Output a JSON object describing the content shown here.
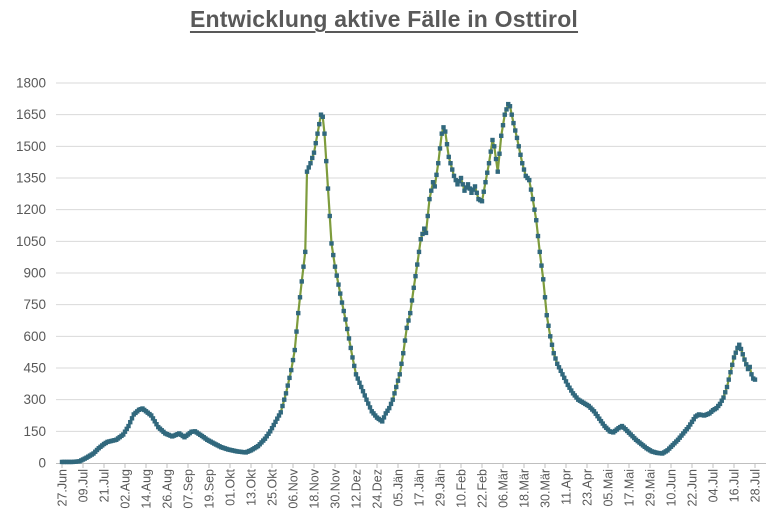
{
  "title": "Entwicklung aktive Fälle in Osttirol",
  "colors": {
    "line": "#7E9C3D",
    "marker": "#31687D",
    "grid": "#D9D9D9",
    "axis": "#BFBFBF",
    "text": "#595959",
    "title_text": "#595959",
    "background": "#FFFFFF"
  },
  "chart_data": {
    "type": "line",
    "title": "Entwicklung aktive Fälle in Osttirol",
    "xlabel": "",
    "ylabel": "",
    "ylim": [
      0,
      1800
    ],
    "ytick_step": 150,
    "yticks": [
      0,
      150,
      300,
      450,
      600,
      750,
      900,
      1050,
      1200,
      1350,
      1500,
      1650,
      1800
    ],
    "x_tick_labels": [
      "27.Jun",
      "09.Jul",
      "21.Jul",
      "02.Aug",
      "14.Aug",
      "26.Aug",
      "07.Sep",
      "19.Sep",
      "01.Okt",
      "13.Okt",
      "25.Okt",
      "06.Nov",
      "18.Nov",
      "30.Nov",
      "12.Dez",
      "24.Dez",
      "05.Jän",
      "17.Jän",
      "29.Jän",
      "10.Feb",
      "22.Feb",
      "06.Mär",
      "18.Mär",
      "30.Mär",
      "11.Apr",
      "23.Apr",
      "05.Mai",
      "17.Mai",
      "29.Mai",
      "10.Jun",
      "22.Jun",
      "04.Jul",
      "16.Jul",
      "28.Jul"
    ],
    "x_tick_interval_days": 12,
    "total_days": 396,
    "grid": true,
    "legend": "none",
    "series": [
      {
        "name": "aktive Fälle",
        "marker": "square",
        "line_color": "#7E9C3D",
        "marker_color": "#31687D",
        "anchor_points_day_value": [
          [
            0,
            5
          ],
          [
            6,
            5
          ],
          [
            10,
            8
          ],
          [
            14,
            25
          ],
          [
            18,
            45
          ],
          [
            21,
            70
          ],
          [
            24,
            90
          ],
          [
            26,
            100
          ],
          [
            31,
            110
          ],
          [
            35,
            135
          ],
          [
            38,
            175
          ],
          [
            41,
            230
          ],
          [
            44,
            252
          ],
          [
            46,
            258
          ],
          [
            48,
            245
          ],
          [
            51,
            225
          ],
          [
            55,
            170
          ],
          [
            59,
            140
          ],
          [
            63,
            126
          ],
          [
            67,
            140
          ],
          [
            70,
            122
          ],
          [
            74,
            148
          ],
          [
            76,
            150
          ],
          [
            80,
            128
          ],
          [
            83,
            110
          ],
          [
            87,
            92
          ],
          [
            91,
            75
          ],
          [
            95,
            64
          ],
          [
            100,
            55
          ],
          [
            105,
            50
          ],
          [
            108,
            60
          ],
          [
            112,
            80
          ],
          [
            116,
            115
          ],
          [
            119,
            150
          ],
          [
            122,
            195
          ],
          [
            125,
            240
          ],
          [
            128,
            330
          ],
          [
            131,
            440
          ],
          [
            133,
            535
          ],
          [
            135,
            710
          ],
          [
            137,
            860
          ],
          [
            139,
            1000
          ],
          [
            140,
            1380
          ],
          [
            142,
            1420
          ],
          [
            144,
            1470
          ],
          [
            146,
            1560
          ],
          [
            148,
            1650
          ],
          [
            149,
            1640
          ],
          [
            150,
            1560
          ],
          [
            151,
            1430
          ],
          [
            152,
            1300
          ],
          [
            153,
            1170
          ],
          [
            154,
            1040
          ],
          [
            155,
            985
          ],
          [
            156,
            930
          ],
          [
            158,
            845
          ],
          [
            160,
            760
          ],
          [
            162,
            680
          ],
          [
            164,
            590
          ],
          [
            166,
            500
          ],
          [
            168,
            420
          ],
          [
            171,
            360
          ],
          [
            174,
            300
          ],
          [
            177,
            245
          ],
          [
            180,
            215
          ],
          [
            183,
            197
          ],
          [
            185,
            235
          ],
          [
            187,
            260
          ],
          [
            189,
            300
          ],
          [
            191,
            360
          ],
          [
            193,
            420
          ],
          [
            195,
            520
          ],
          [
            197,
            640
          ],
          [
            199,
            710
          ],
          [
            201,
            830
          ],
          [
            203,
            940
          ],
          [
            205,
            1060
          ],
          [
            207,
            1110
          ],
          [
            208,
            1090
          ],
          [
            210,
            1250
          ],
          [
            212,
            1330
          ],
          [
            213,
            1310
          ],
          [
            215,
            1420
          ],
          [
            217,
            1560
          ],
          [
            218,
            1590
          ],
          [
            219,
            1570
          ],
          [
            221,
            1450
          ],
          [
            222,
            1420
          ],
          [
            224,
            1360
          ],
          [
            226,
            1320
          ],
          [
            228,
            1350
          ],
          [
            230,
            1290
          ],
          [
            232,
            1320
          ],
          [
            234,
            1280
          ],
          [
            236,
            1310
          ],
          [
            238,
            1250
          ],
          [
            240,
            1240
          ],
          [
            242,
            1330
          ],
          [
            244,
            1420
          ],
          [
            246,
            1530
          ],
          [
            247,
            1500
          ],
          [
            249,
            1380
          ],
          [
            251,
            1550
          ],
          [
            253,
            1650
          ],
          [
            255,
            1700
          ],
          [
            256,
            1690
          ],
          [
            258,
            1610
          ],
          [
            260,
            1540
          ],
          [
            261,
            1500
          ],
          [
            263,
            1420
          ],
          [
            265,
            1360
          ],
          [
            267,
            1340
          ],
          [
            269,
            1250
          ],
          [
            271,
            1150
          ],
          [
            273,
            1000
          ],
          [
            275,
            870
          ],
          [
            277,
            700
          ],
          [
            279,
            600
          ],
          [
            281,
            520
          ],
          [
            283,
            470
          ],
          [
            286,
            420
          ],
          [
            289,
            370
          ],
          [
            292,
            330
          ],
          [
            295,
            300
          ],
          [
            298,
            285
          ],
          [
            301,
            270
          ],
          [
            304,
            245
          ],
          [
            307,
            210
          ],
          [
            310,
            175
          ],
          [
            313,
            150
          ],
          [
            315,
            145
          ],
          [
            318,
            165
          ],
          [
            320,
            175
          ],
          [
            322,
            160
          ],
          [
            325,
            135
          ],
          [
            328,
            110
          ],
          [
            331,
            90
          ],
          [
            334,
            70
          ],
          [
            337,
            55
          ],
          [
            340,
            48
          ],
          [
            343,
            45
          ],
          [
            346,
            60
          ],
          [
            349,
            85
          ],
          [
            352,
            110
          ],
          [
            355,
            140
          ],
          [
            358,
            170
          ],
          [
            360,
            195
          ],
          [
            362,
            220
          ],
          [
            364,
            230
          ],
          [
            367,
            225
          ],
          [
            370,
            235
          ],
          [
            372,
            250
          ],
          [
            374,
            260
          ],
          [
            376,
            280
          ],
          [
            378,
            310
          ],
          [
            380,
            360
          ],
          [
            382,
            430
          ],
          [
            384,
            500
          ],
          [
            386,
            545
          ],
          [
            387,
            560
          ],
          [
            388,
            540
          ],
          [
            390,
            490
          ],
          [
            392,
            445
          ],
          [
            393,
            455
          ],
          [
            394,
            420
          ],
          [
            395,
            400
          ],
          [
            396,
            395
          ]
        ]
      }
    ]
  }
}
